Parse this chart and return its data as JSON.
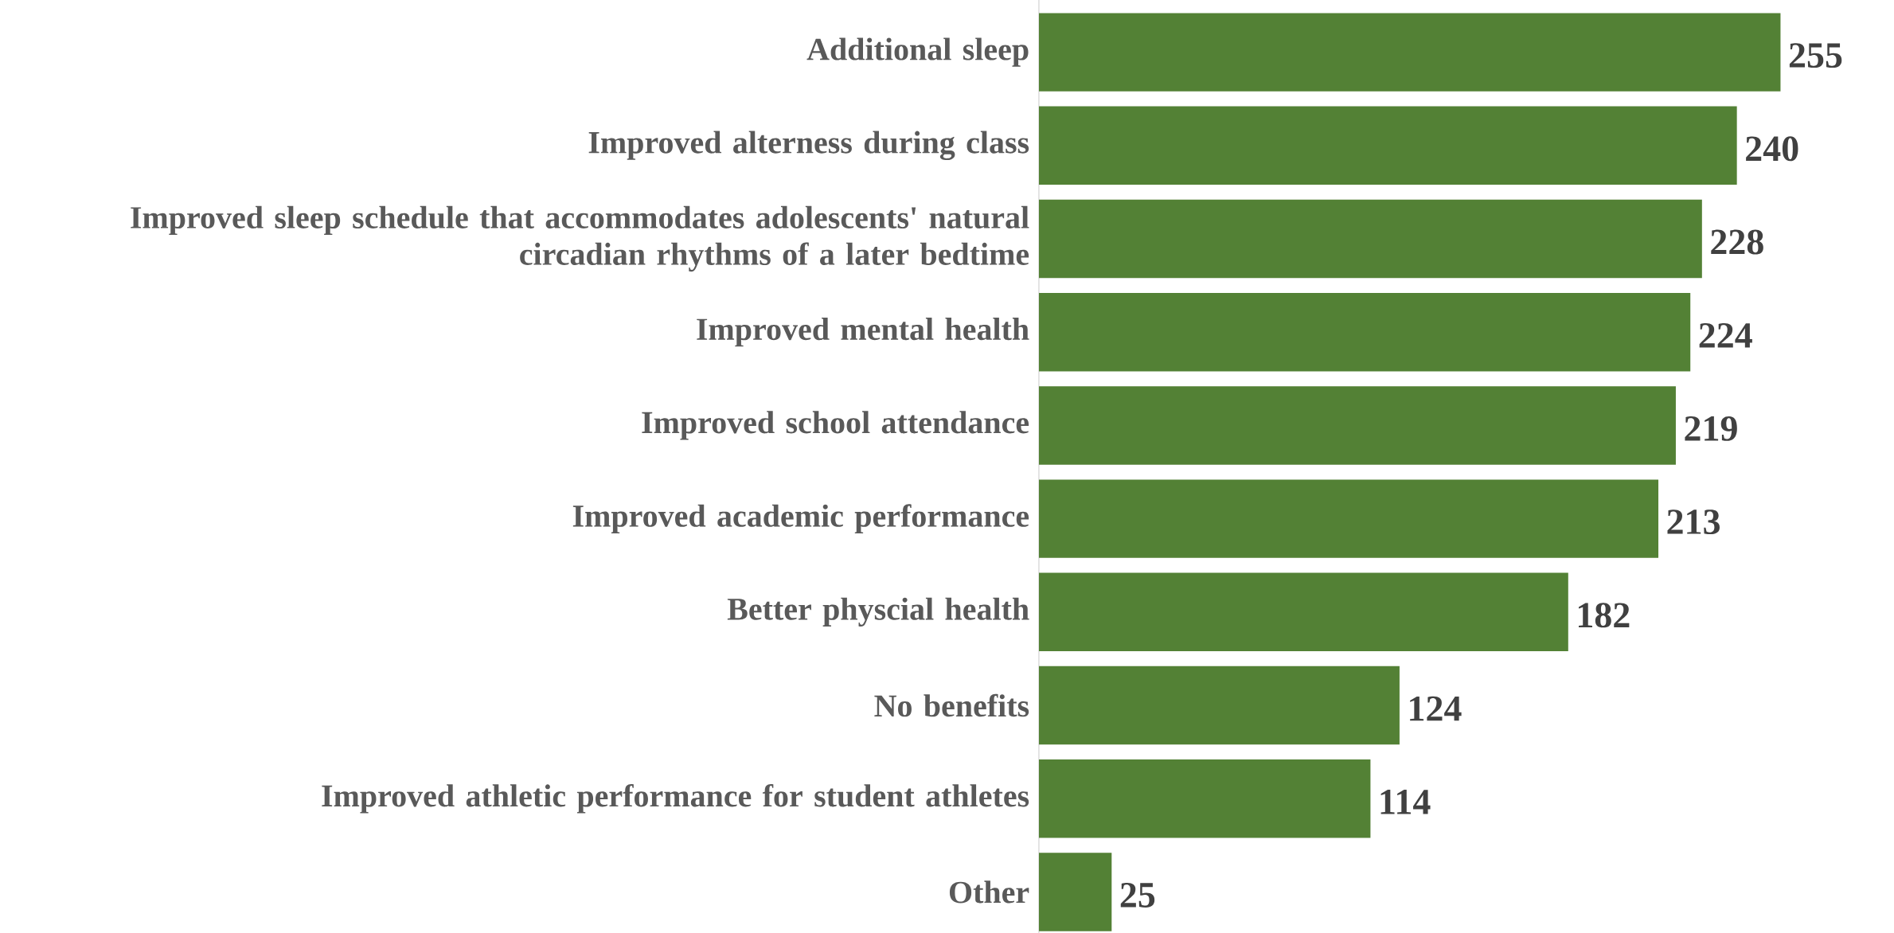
{
  "chart_data": {
    "type": "bar",
    "orientation": "horizontal",
    "color": "#538135",
    "data_labels": true,
    "categories": [
      "Additional sleep",
      "Improved alterness during class",
      "Improved sleep schedule that accommodates adolescents' natural circadian rhythms of a later bedtime",
      "Improved mental health",
      "Improved school attendance",
      "Improved academic performance",
      "Better physcial health",
      "No benefits",
      "Improved athletic performance for student athletes",
      "Other"
    ],
    "values": [
      255,
      240,
      228,
      224,
      219,
      213,
      182,
      124,
      114,
      25
    ]
  }
}
